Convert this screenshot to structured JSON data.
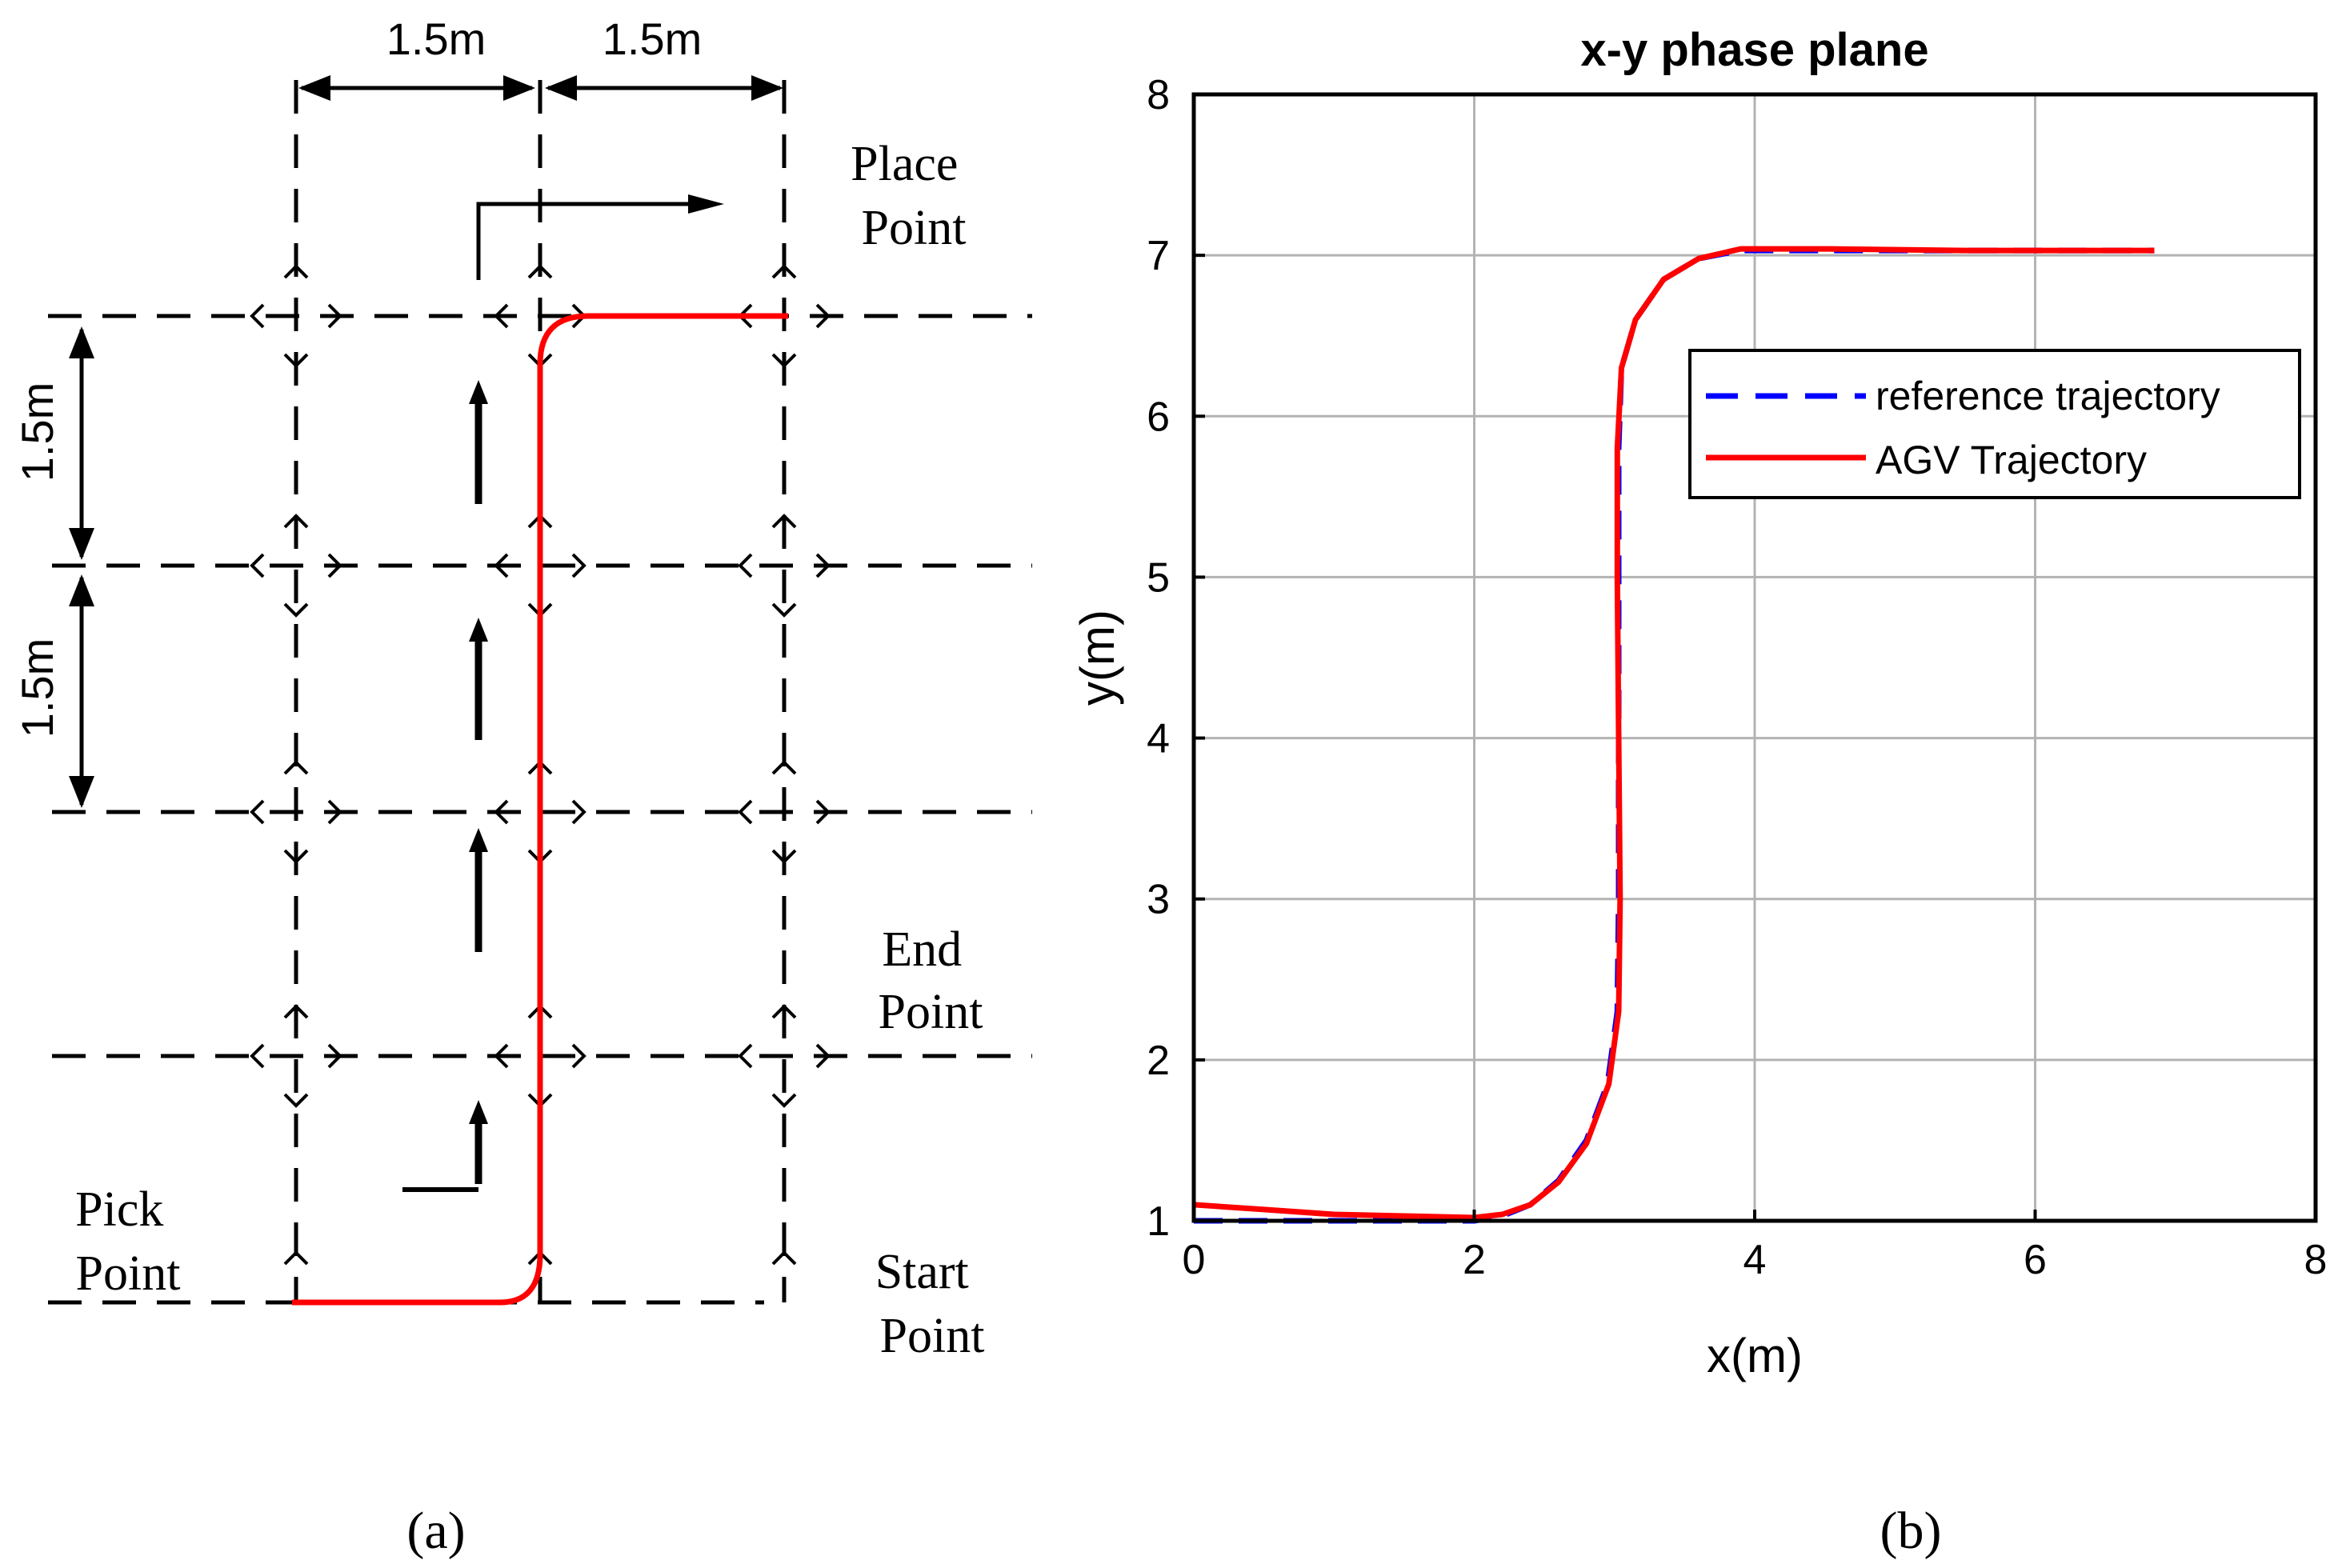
{
  "panel_a": {
    "caption": "(a)",
    "dim_top_left": "1.5m",
    "dim_top_right": "1.5m",
    "dim_left_upper": "1.5m",
    "dim_left_lower": "1.5m",
    "place_point": [
      "Place",
      "Point"
    ],
    "end_point": [
      "End",
      "Point"
    ],
    "pick_point": [
      "Pick",
      "Point"
    ],
    "start_point": [
      "Start",
      "Point"
    ],
    "path_color": "#ff0000",
    "grid_color": "#000000"
  },
  "panel_b": {
    "caption": "(b)"
  },
  "chart_data": {
    "type": "line",
    "title": "x-y phase plane",
    "xlabel": "x(m)",
    "ylabel": "y(m)",
    "xlim": [
      0,
      8
    ],
    "ylim": [
      1,
      8
    ],
    "xticks": [
      0,
      2,
      4,
      6,
      8
    ],
    "yticks": [
      1,
      2,
      3,
      4,
      5,
      6,
      7,
      8
    ],
    "grid": true,
    "legend_position": "upper-right",
    "series": [
      {
        "name": "reference trajectory",
        "color": "#0000ff",
        "style": "dashed",
        "points": [
          [
            0,
            1.0
          ],
          [
            0.5,
            1.0
          ],
          [
            1.0,
            1.0
          ],
          [
            1.5,
            1.0
          ],
          [
            2.0,
            1.0
          ],
          [
            2.2,
            1.03
          ],
          [
            2.4,
            1.1
          ],
          [
            2.6,
            1.25
          ],
          [
            2.8,
            1.5
          ],
          [
            2.95,
            1.85
          ],
          [
            3.02,
            2.3
          ],
          [
            3.03,
            3.0
          ],
          [
            3.03,
            4.0
          ],
          [
            3.03,
            5.0
          ],
          [
            3.03,
            5.8
          ],
          [
            3.05,
            6.3
          ],
          [
            3.15,
            6.6
          ],
          [
            3.35,
            6.85
          ],
          [
            3.6,
            6.98
          ],
          [
            3.9,
            7.03
          ],
          [
            4.5,
            7.03
          ],
          [
            5.5,
            7.03
          ],
          [
            6.5,
            7.03
          ],
          [
            6.85,
            7.03
          ]
        ]
      },
      {
        "name": "AGV Trajectory",
        "color": "#ff0000",
        "style": "solid",
        "points": [
          [
            0,
            1.1
          ],
          [
            0.5,
            1.07
          ],
          [
            1.0,
            1.04
          ],
          [
            1.5,
            1.03
          ],
          [
            2.0,
            1.02
          ],
          [
            2.2,
            1.04
          ],
          [
            2.4,
            1.1
          ],
          [
            2.6,
            1.24
          ],
          [
            2.8,
            1.48
          ],
          [
            2.96,
            1.85
          ],
          [
            3.03,
            2.3
          ],
          [
            3.04,
            3.0
          ],
          [
            3.03,
            4.0
          ],
          [
            3.02,
            5.0
          ],
          [
            3.02,
            5.8
          ],
          [
            3.05,
            6.3
          ],
          [
            3.15,
            6.6
          ],
          [
            3.35,
            6.85
          ],
          [
            3.6,
            6.98
          ],
          [
            3.9,
            7.04
          ],
          [
            4.5,
            7.04
          ],
          [
            5.5,
            7.03
          ],
          [
            6.5,
            7.03
          ],
          [
            6.85,
            7.03
          ]
        ]
      }
    ]
  }
}
